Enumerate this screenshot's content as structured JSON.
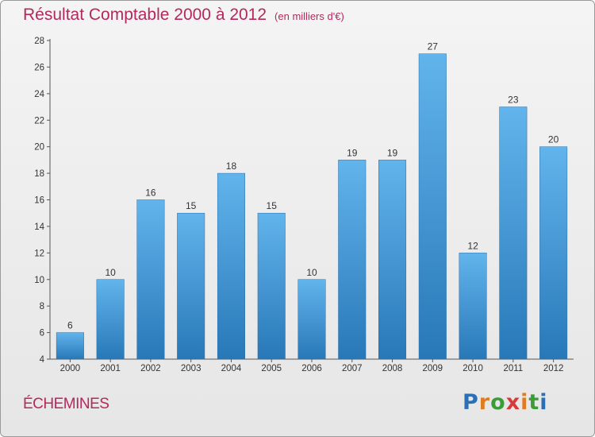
{
  "title": "Résultat Comptable 2000 à 2012",
  "unit": "(en milliers d'€)",
  "commune": "ÉCHEMINES",
  "logo": [
    "P",
    "r",
    "o",
    "x",
    "i",
    "t",
    "i"
  ],
  "colors": {
    "bar_top": "#62b4ec",
    "bar_bottom": "#2878b8",
    "title": "#b5285c"
  },
  "chart_data": {
    "type": "bar",
    "title": "Résultat Comptable 2000 à 2012 (en milliers d'€)",
    "xlabel": "",
    "ylabel": "",
    "categories": [
      "2000",
      "2001",
      "2002",
      "2003",
      "2004",
      "2005",
      "2006",
      "2007",
      "2008",
      "2009",
      "2010",
      "2011",
      "2012"
    ],
    "values": [
      6,
      10,
      16,
      15,
      18,
      15,
      10,
      19,
      19,
      27,
      12,
      23,
      20
    ],
    "ylim": [
      4,
      28
    ],
    "yticks": [
      4,
      6,
      8,
      10,
      12,
      14,
      16,
      18,
      20,
      22,
      24,
      26,
      28
    ],
    "grid": false
  }
}
